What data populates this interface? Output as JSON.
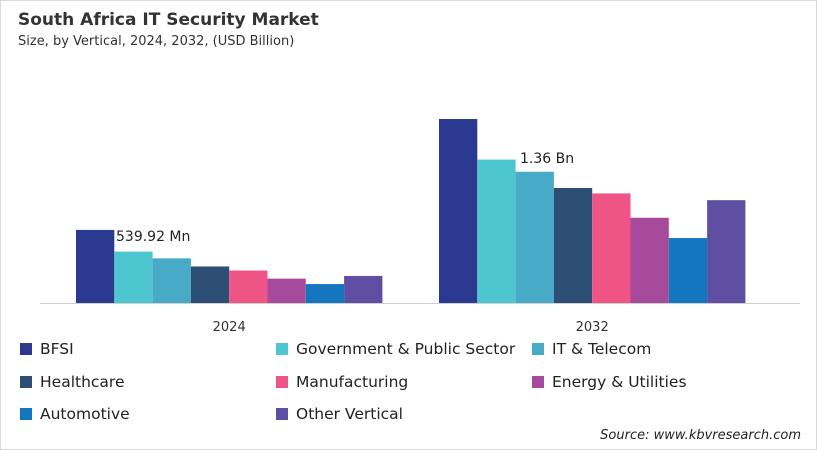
{
  "chart_data": {
    "type": "bar",
    "title": "South Africa IT Security Market",
    "subtitle": "Size, by Vertical, 2024, 2032, (USD Billion)",
    "categories": [
      "2024",
      "2032"
    ],
    "series": [
      {
        "name": "BFSI",
        "color": "#2B3990",
        "values": [
          0.54,
          1.36
        ]
      },
      {
        "name": "Government & Public Sector",
        "color": "#4DC6D0",
        "values": [
          0.38,
          1.06
        ]
      },
      {
        "name": "IT & Telecom",
        "color": "#47ABC8",
        "values": [
          0.33,
          0.97
        ]
      },
      {
        "name": "Healthcare",
        "color": "#2C4E74",
        "values": [
          0.27,
          0.85
        ]
      },
      {
        "name": "Manufacturing",
        "color": "#EE5486",
        "values": [
          0.24,
          0.81
        ]
      },
      {
        "name": "Energy & Utilities",
        "color": "#A84A9C",
        "values": [
          0.18,
          0.63
        ]
      },
      {
        "name": "Automotive",
        "color": "#1476BF",
        "values": [
          0.14,
          0.48
        ]
      },
      {
        "name": "Other Vertical",
        "color": "#5E4FA2",
        "values": [
          0.2,
          0.76
        ]
      }
    ],
    "data_labels": [
      "539.92 Mn",
      "1.36  Bn"
    ],
    "ylim": [
      0,
      1.4
    ],
    "grid": false,
    "legend": "bottom"
  },
  "source": "Source: www.kbvresearch.com"
}
